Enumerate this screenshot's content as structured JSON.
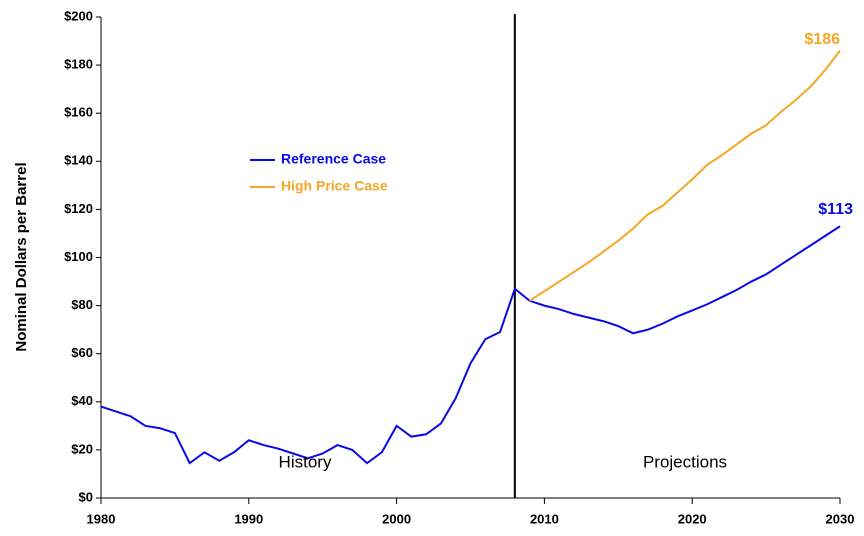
{
  "chart_data": {
    "type": "line",
    "ylabel": "Nominal Dollars per Barrel",
    "x": [
      1980,
      1981,
      1982,
      1983,
      1984,
      1985,
      1986,
      1987,
      1988,
      1989,
      1990,
      1991,
      1992,
      1993,
      1994,
      1995,
      1996,
      1997,
      1998,
      1999,
      2000,
      2001,
      2002,
      2003,
      2004,
      2005,
      2006,
      2007,
      2008,
      2009,
      2010,
      2011,
      2012,
      2013,
      2014,
      2015,
      2016,
      2017,
      2018,
      2019,
      2020,
      2021,
      2022,
      2023,
      2024,
      2025,
      2026,
      2027,
      2028,
      2029,
      2030
    ],
    "series": [
      {
        "name": "Reference Case",
        "color": "#0a0ae6",
        "values": [
          38,
          36,
          34,
          30,
          29,
          27,
          14.5,
          19,
          15.5,
          19,
          24,
          22,
          20.5,
          18.5,
          16.5,
          18.5,
          22,
          20,
          14.5,
          19,
          30,
          25.5,
          26.5,
          31,
          41.5,
          56,
          66,
          69,
          87,
          82,
          80,
          78.5,
          76.5,
          75,
          73.5,
          71.5,
          68.5,
          70,
          72.5,
          75.5,
          78,
          80.5,
          83.5,
          86.5,
          90,
          93,
          97,
          101,
          105,
          109,
          113
        ]
      },
      {
        "name": "High Price Case",
        "color": "#f5a623",
        "values": [
          null,
          null,
          null,
          null,
          null,
          null,
          null,
          null,
          null,
          null,
          null,
          null,
          null,
          null,
          null,
          null,
          null,
          null,
          null,
          null,
          null,
          null,
          null,
          null,
          null,
          null,
          null,
          null,
          null,
          82,
          86,
          90,
          94,
          98,
          102.5,
          107,
          112,
          118,
          121.5,
          127,
          132.5,
          138.5,
          142.5,
          147,
          151.5,
          155,
          160.5,
          165.5,
          171,
          178,
          186
        ]
      }
    ],
    "xlim": [
      1980,
      2030
    ],
    "xticks": [
      1980,
      1990,
      2000,
      2010,
      2020,
      2030
    ],
    "ylim": [
      0,
      200
    ],
    "yticks": [
      {
        "value": 0,
        "label": "$0"
      },
      {
        "value": 20,
        "label": "$20"
      },
      {
        "value": 40,
        "label": "$40"
      },
      {
        "value": 60,
        "label": "$60"
      },
      {
        "value": 80,
        "label": "$80"
      },
      {
        "value": 100,
        "label": "$100"
      },
      {
        "value": 120,
        "label": "$120"
      },
      {
        "value": 140,
        "label": "$140"
      },
      {
        "value": 160,
        "label": "$160"
      },
      {
        "value": 180,
        "label": "$180"
      },
      {
        "value": 200,
        "label": "$200"
      }
    ],
    "divider_x": 2008,
    "annotations": [
      "$186",
      "$113",
      "History",
      "Projections"
    ],
    "grid": false
  }
}
